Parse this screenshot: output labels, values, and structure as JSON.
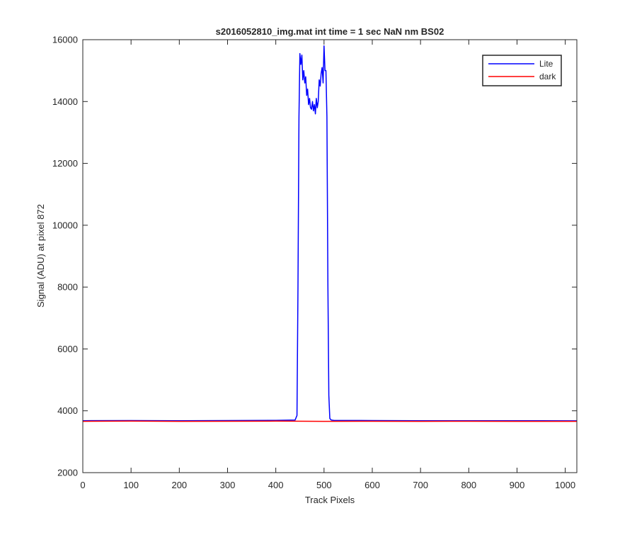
{
  "chart_data": {
    "type": "line",
    "title": "s2016052810_img.mat int time = 1 sec  NaN nm BS02",
    "xlabel": "Track Pixels",
    "ylabel": "Signal (ADU) at pixel 872",
    "xlim": [
      0,
      1024
    ],
    "ylim": [
      2000,
      16000
    ],
    "xticks": [
      0,
      100,
      200,
      300,
      400,
      500,
      600,
      700,
      800,
      900,
      1000
    ],
    "yticks": [
      2000,
      4000,
      6000,
      8000,
      10000,
      12000,
      14000,
      16000
    ],
    "grid": false,
    "legend_position": "top-right",
    "series": [
      {
        "name": "Lite",
        "color": "#0000ff",
        "x": [
          0,
          100,
          200,
          300,
          400,
          440,
          444,
          446,
          448,
          450,
          452,
          454,
          456,
          458,
          460,
          462,
          464,
          466,
          468,
          470,
          472,
          474,
          476,
          478,
          480,
          482,
          484,
          486,
          488,
          490,
          492,
          494,
          496,
          498,
          500,
          502,
          504,
          506,
          508,
          510,
          512,
          515,
          520,
          600,
          700,
          800,
          900,
          1024
        ],
        "y": [
          3680,
          3685,
          3680,
          3685,
          3690,
          3700,
          3850,
          8000,
          13500,
          15550,
          15200,
          15500,
          14700,
          15000,
          14600,
          14800,
          14200,
          14400,
          13900,
          14100,
          13800,
          13750,
          14000,
          13700,
          13900,
          13600,
          14100,
          13800,
          14000,
          14700,
          14500,
          14900,
          15100,
          14600,
          15800,
          15000,
          15000,
          13500,
          8000,
          4500,
          3750,
          3700,
          3690,
          3685,
          3680,
          3680,
          3680,
          3675
        ]
      },
      {
        "name": "dark",
        "color": "#ff0000",
        "x": [
          0,
          100,
          200,
          300,
          400,
          500,
          600,
          700,
          800,
          900,
          1024
        ],
        "y": [
          3660,
          3665,
          3660,
          3662,
          3665,
          3660,
          3662,
          3660,
          3662,
          3660,
          3660
        ]
      }
    ]
  }
}
